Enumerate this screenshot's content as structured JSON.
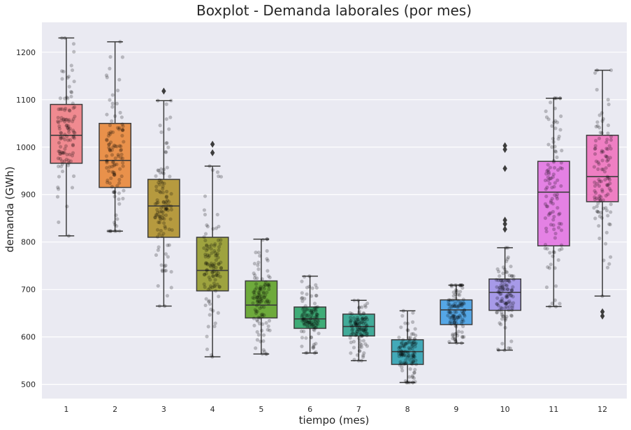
{
  "chart_data": {
    "type": "box",
    "title": "Boxplot - Demanda laborales (por mes)",
    "xlabel": "tiempo (mes)",
    "ylabel": "demanda (GWh)",
    "ylim": [
      470,
      1263
    ],
    "yticks": [
      500,
      600,
      700,
      800,
      900,
      1000,
      1100,
      1200
    ],
    "grid": true,
    "background": "#eaeaf2",
    "categories": [
      "1",
      "2",
      "3",
      "4",
      "5",
      "6",
      "7",
      "8",
      "9",
      "10",
      "11",
      "12"
    ],
    "colors": [
      "#f08a90",
      "#e9914b",
      "#b69a3f",
      "#9ea33f",
      "#6eaa3c",
      "#3fac77",
      "#41ab99",
      "#42a9b8",
      "#55a7e6",
      "#a79ae8",
      "#e481e4",
      "#ef7fc3"
    ],
    "boxes": [
      {
        "month": "1",
        "whisker_low": 813,
        "q1": 966,
        "median": 1025,
        "q3": 1090,
        "whisker_high": 1230,
        "outliers": []
      },
      {
        "month": "2",
        "whisker_low": 823,
        "q1": 915,
        "median": 972,
        "q3": 1050,
        "whisker_high": 1222,
        "outliers": []
      },
      {
        "month": "3",
        "whisker_low": 665,
        "q1": 810,
        "median": 876,
        "q3": 932,
        "whisker_high": 1098,
        "outliers": [
          1118
        ]
      },
      {
        "month": "4",
        "whisker_low": 558,
        "q1": 697,
        "median": 740,
        "q3": 810,
        "whisker_high": 960,
        "outliers": [
          988,
          1006
        ]
      },
      {
        "month": "5",
        "whisker_low": 564,
        "q1": 640,
        "median": 667,
        "q3": 718,
        "whisker_high": 806,
        "outliers": []
      },
      {
        "month": "6",
        "whisker_low": 566,
        "q1": 618,
        "median": 638,
        "q3": 663,
        "whisker_high": 728,
        "outliers": []
      },
      {
        "month": "7",
        "whisker_low": 550,
        "q1": 602,
        "median": 622,
        "q3": 648,
        "whisker_high": 677,
        "outliers": []
      },
      {
        "month": "8",
        "whisker_low": 504,
        "q1": 542,
        "median": 569,
        "q3": 594,
        "whisker_high": 655,
        "outliers": []
      },
      {
        "month": "9",
        "whisker_low": 587,
        "q1": 626,
        "median": 657,
        "q3": 678,
        "whisker_high": 709,
        "outliers": []
      },
      {
        "month": "10",
        "whisker_low": 572,
        "q1": 656,
        "median": 694,
        "q3": 722,
        "whisker_high": 788,
        "outliers": [
          827,
          838,
          846,
          955,
          995,
          1003
        ]
      },
      {
        "month": "11",
        "whisker_low": 664,
        "q1": 792,
        "median": 905,
        "q3": 970,
        "whisker_high": 1103,
        "outliers": []
      },
      {
        "month": "12",
        "whisker_low": 686,
        "q1": 885,
        "median": 938,
        "q3": 1025,
        "whisker_high": 1162,
        "outliers": [
          644,
          653
        ]
      }
    ],
    "strip_points_per_month": 110
  }
}
